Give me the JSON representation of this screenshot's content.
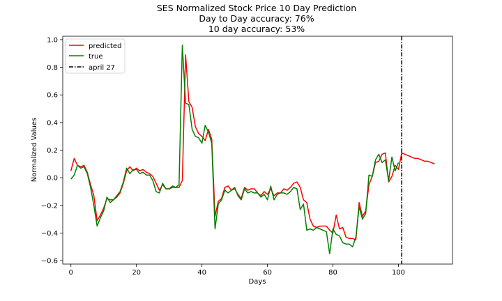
{
  "chart_data": {
    "type": "line",
    "title": "SES Normalized Stock Price 10 Day Prediction",
    "subtitle_lines": [
      "Day to Day accuracy: 76%",
      "10 day accuracy: 53%"
    ],
    "xlabel": "Days",
    "ylabel": "Normalized Values",
    "xlim": [
      -2.5,
      116.5
    ],
    "ylim": [
      -0.625,
      1.025
    ],
    "x_ticks": [
      0,
      20,
      40,
      60,
      80,
      100
    ],
    "y_ticks": [
      -0.6,
      -0.4,
      -0.2,
      0.0,
      0.2,
      0.4,
      0.6,
      0.8,
      1.0
    ],
    "x_tick_labels": [
      "0",
      "20",
      "40",
      "60",
      "80",
      "100"
    ],
    "y_tick_labels": [
      "−0.6",
      "−0.4",
      "−0.2",
      "0.0",
      "0.2",
      "0.4",
      "0.6",
      "0.8",
      "1.0"
    ],
    "grid": false,
    "legend_position": "upper-left",
    "series": [
      {
        "name": "predicted",
        "color": "#ff0000",
        "y": [
          0.05,
          0.14,
          0.09,
          0.08,
          0.09,
          0.04,
          -0.05,
          -0.13,
          -0.31,
          -0.27,
          -0.22,
          -0.15,
          -0.16,
          -0.16,
          -0.14,
          -0.11,
          -0.04,
          0.05,
          0.08,
          0.05,
          0.07,
          0.05,
          0.06,
          0.04,
          0.03,
          0.01,
          -0.04,
          -0.09,
          -0.05,
          -0.08,
          -0.08,
          -0.07,
          -0.07,
          -0.07,
          -0.02,
          0.89,
          0.55,
          0.51,
          0.37,
          0.32,
          0.3,
          0.27,
          0.35,
          0.28,
          -0.28,
          -0.17,
          -0.15,
          -0.07,
          -0.06,
          -0.09,
          -0.08,
          -0.12,
          -0.15,
          -0.07,
          -0.09,
          -0.08,
          -0.08,
          -0.11,
          -0.13,
          -0.1,
          -0.12,
          -0.08,
          -0.13,
          -0.11,
          -0.11,
          -0.08,
          -0.09,
          -0.07,
          -0.04,
          -0.03,
          -0.07,
          -0.16,
          -0.18,
          -0.3,
          -0.35,
          -0.36,
          -0.35,
          -0.35,
          -0.35,
          -0.38,
          -0.4,
          -0.27,
          -0.37,
          -0.36,
          -0.43,
          -0.44,
          -0.44,
          -0.45,
          -0.18,
          -0.28,
          -0.24,
          -0.05,
          0.01,
          0.11,
          0.12,
          0.17,
          0.18,
          -0.03,
          0.01,
          0.09,
          0.06,
          0.18,
          0.17,
          0.16,
          0.15,
          0.14,
          0.14,
          0.13,
          0.12,
          0.12,
          0.11,
          0.1
        ],
        "x_start": 0
      },
      {
        "name": "true",
        "color": "#008000",
        "y": [
          -0.01,
          0.02,
          0.09,
          0.07,
          0.08,
          0.03,
          -0.07,
          -0.2,
          -0.35,
          -0.29,
          -0.24,
          -0.14,
          -0.18,
          -0.16,
          -0.13,
          -0.1,
          -0.03,
          0.07,
          0.03,
          0.06,
          0.06,
          0.03,
          0.04,
          0.02,
          0.02,
          -0.02,
          -0.1,
          -0.11,
          -0.04,
          -0.08,
          -0.08,
          -0.06,
          -0.07,
          -0.05,
          0.96,
          0.54,
          0.53,
          0.35,
          0.3,
          0.29,
          0.25,
          0.38,
          0.33,
          0.25,
          -0.37,
          -0.19,
          -0.16,
          -0.09,
          -0.11,
          -0.09,
          -0.07,
          -0.13,
          -0.16,
          -0.08,
          -0.11,
          -0.1,
          -0.11,
          -0.11,
          -0.14,
          -0.12,
          -0.16,
          -0.06,
          -0.16,
          -0.12,
          -0.11,
          -0.11,
          -0.12,
          -0.1,
          -0.07,
          -0.08,
          -0.23,
          -0.19,
          -0.38,
          -0.37,
          -0.38,
          -0.36,
          -0.37,
          -0.38,
          -0.39,
          -0.55,
          -0.37,
          -0.41,
          -0.42,
          -0.47,
          -0.48,
          -0.48,
          -0.5,
          -0.43,
          -0.21,
          -0.3,
          -0.26,
          0.02,
          0.01,
          0.13,
          0.17,
          0.11,
          0.13,
          -0.02,
          0.15,
          0.05,
          0.11
        ],
        "x_start": 0
      }
    ],
    "vline": {
      "name": "april 27",
      "x": 101,
      "color": "#000000",
      "style": "dash-dot"
    }
  }
}
